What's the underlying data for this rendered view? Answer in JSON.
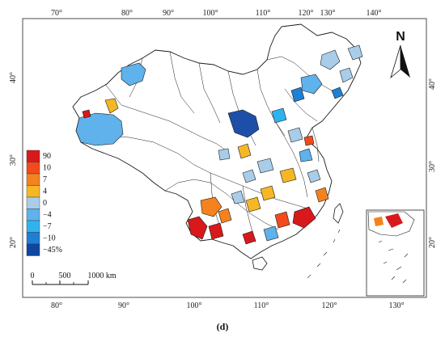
{
  "map": {
    "top_axis_ticks": [
      "70°",
      "80°",
      "90°",
      "100°",
      "110°",
      "120°",
      "130°",
      "140°"
    ],
    "bottom_axis_ticks": [
      "80°",
      "90°",
      "100°",
      "110°",
      "120°",
      "130°"
    ],
    "left_axis_ticks": [
      "40°",
      "30°",
      "20°"
    ],
    "right_axis_ticks": [
      "40°",
      "30°",
      "20°"
    ],
    "north_label": "N",
    "scale_bar": {
      "labels": [
        "0",
        "500",
        "1000 km"
      ]
    },
    "caption": "(d)"
  },
  "legend": {
    "items": [
      {
        "label": "90",
        "color": "#d7191c"
      },
      {
        "label": "10",
        "color": "#f24a1d"
      },
      {
        "label": "7",
        "color": "#f5821f"
      },
      {
        "label": "4",
        "color": "#f6b724"
      },
      {
        "label": "0",
        "color": "#a9cde9"
      },
      {
        "label": "−4",
        "color": "#5fb2ec"
      },
      {
        "label": "−7",
        "color": "#2fb3f0"
      },
      {
        "label": "−10",
        "color": "#1e7fd4"
      },
      {
        "label": "−45%",
        "color": "#0d47a1"
      }
    ]
  }
}
